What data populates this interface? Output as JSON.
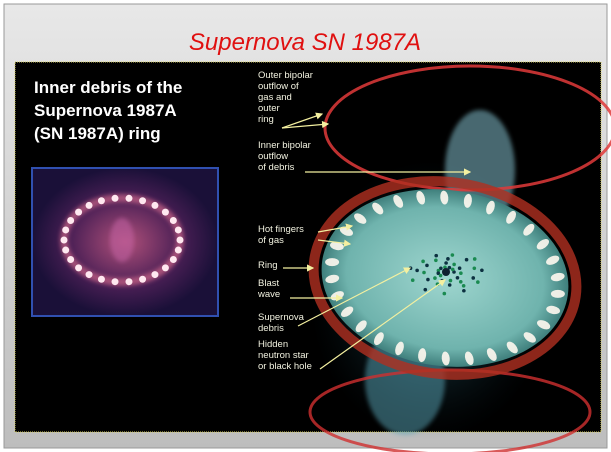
{
  "slide": {
    "title": "Supernova SN 1987A",
    "heading": [
      "Inner debris of the",
      "Supernova 1987A",
      "(SN 1987A) ring"
    ],
    "labels": [
      {
        "lines": [
          "Outer bipolar",
          "outflow of",
          "gas and",
          "outer",
          "ring"
        ]
      },
      {
        "lines": [
          "Inner bipolar",
          "outflow",
          "of debris"
        ]
      },
      {
        "lines": [
          "Hot fingers",
          "of gas"
        ]
      },
      {
        "lines": [
          "Ring"
        ]
      },
      {
        "lines": [
          "Blast",
          "wave"
        ]
      },
      {
        "lines": [
          "Supernova",
          "debris"
        ]
      },
      {
        "lines": [
          "Hidden",
          "neutron star",
          "or black hole"
        ]
      }
    ]
  }
}
